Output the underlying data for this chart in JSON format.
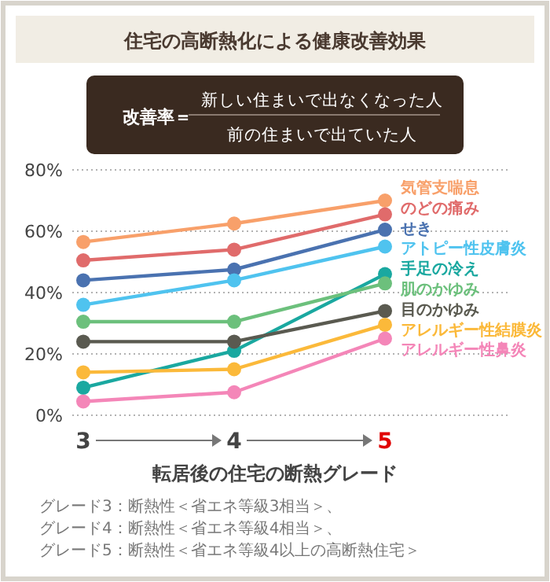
{
  "chart_data": {
    "type": "line",
    "title": "住宅の高断熱化による健康改善効果",
    "xlabel": "転居後の住宅の断熱グレード",
    "categories": [
      "3",
      "4",
      "5"
    ],
    "ylim": [
      0,
      80
    ],
    "yticks": [
      {
        "value": 0,
        "label": "0%"
      },
      {
        "value": 20,
        "label": "20%"
      },
      {
        "value": 40,
        "label": "40%"
      },
      {
        "value": 60,
        "label": "60%"
      },
      {
        "value": 80,
        "label": "80%"
      }
    ],
    "grid": "y",
    "marker": "circle",
    "line_style": "solid",
    "series": [
      {
        "name": "気管支喘息",
        "color": "#f8a06a",
        "values": [
          56.5,
          62.5,
          70
        ]
      },
      {
        "name": "のどの痛み",
        "color": "#e06b6b",
        "values": [
          50.5,
          54,
          65.5
        ]
      },
      {
        "name": "せき",
        "color": "#4a72b0",
        "values": [
          44,
          47.5,
          60.5
        ]
      },
      {
        "name": "アトピー性皮膚炎",
        "color": "#4fc3ef",
        "values": [
          36,
          44,
          55
        ]
      },
      {
        "name": "手足の冷え",
        "color": "#1aa8a0",
        "values": [
          9,
          21,
          46
        ]
      },
      {
        "name": "肌のかゆみ",
        "color": "#6cc07c",
        "values": [
          30.5,
          30.5,
          43
        ]
      },
      {
        "name": "目のかゆみ",
        "color": "#5a5a50",
        "values": [
          24,
          24,
          34
        ]
      },
      {
        "name": "アレルギー性結膜炎",
        "color": "#fbb93a",
        "values": [
          14,
          15,
          29.5
        ]
      },
      {
        "name": "アレルギー性鼻炎",
        "color": "#f486b8",
        "values": [
          4.5,
          7.5,
          25
        ]
      }
    ],
    "annotations": [
      "改善率＝",
      "新しい住まいで出なくなった人",
      "前の住まいで出ていた人",
      "グレード3：断熱性＜省エネ等級3相当＞、",
      "グレード4：断熱性＜省エネ等級4相当＞、",
      "グレード5：断熱性＜省エネ等級4以上の高断熱住宅＞"
    ]
  }
}
